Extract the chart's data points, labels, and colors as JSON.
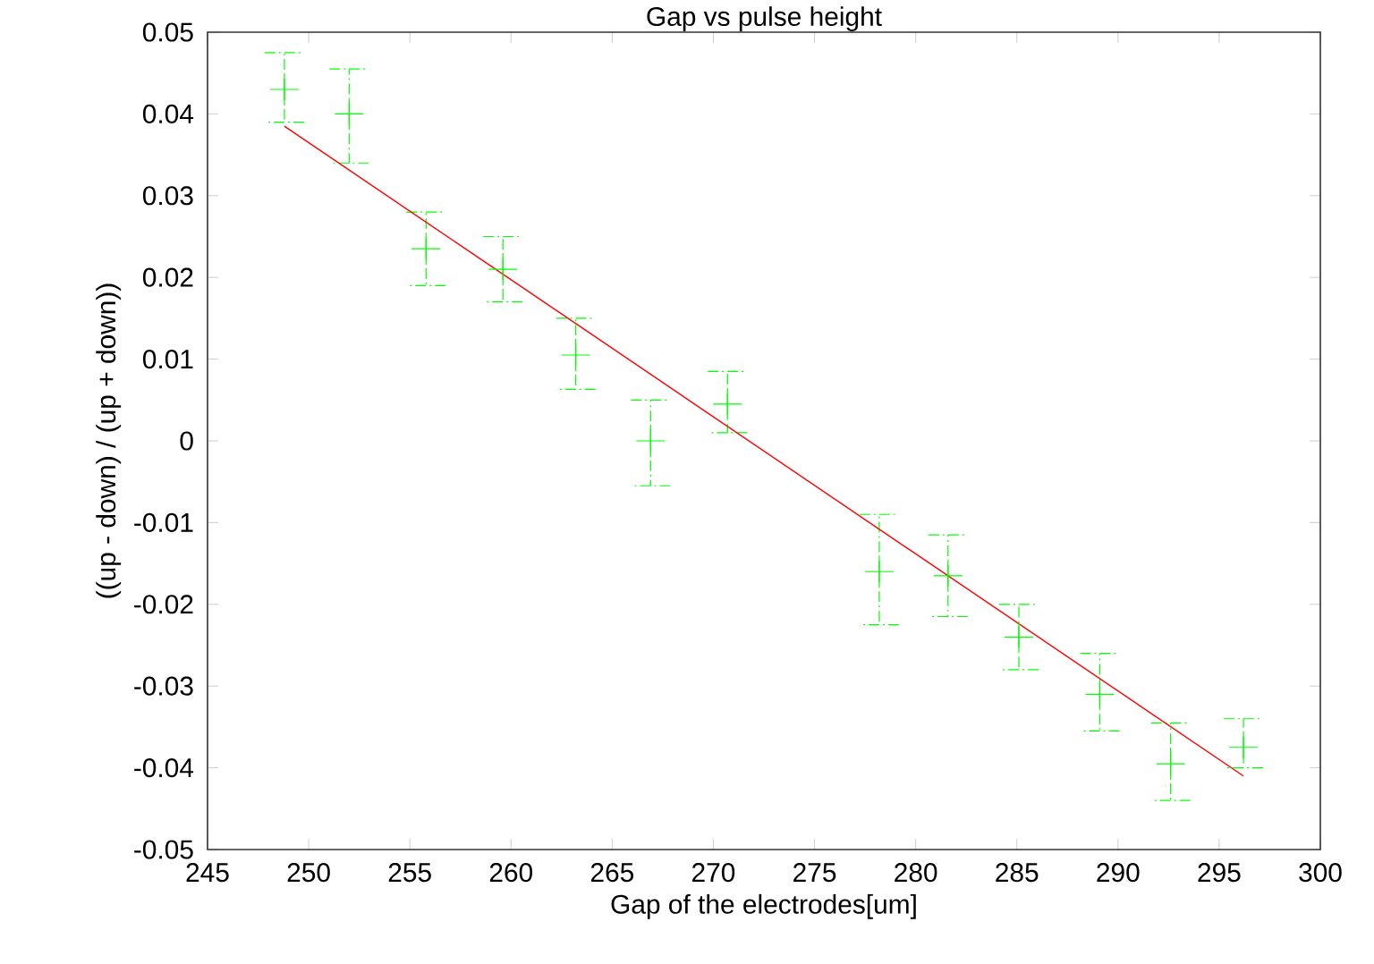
{
  "chart_data": {
    "type": "scatter",
    "title": "Gap vs pulse height",
    "xlabel": "Gap of the electrodes[um]",
    "ylabel": "((up - down) / (up + down))",
    "xlim": [
      245,
      300
    ],
    "xticks": [
      245,
      250,
      255,
      260,
      265,
      270,
      275,
      280,
      285,
      290,
      295,
      300
    ],
    "ylim": [
      -0.05,
      0.05
    ],
    "yticks": [
      -0.05,
      -0.04,
      -0.03,
      -0.02,
      -0.01,
      0,
      0.01,
      0.02,
      0.03,
      0.04,
      0.05
    ],
    "grid": false,
    "marker": "cross",
    "series": [
      {
        "color": "#00ff00",
        "x": [
          248.8,
          252,
          255.8,
          259.6,
          263.2,
          266.9,
          270.7,
          278.2,
          281.6,
          285.1,
          289.1,
          292.6,
          296.2
        ],
        "values": [
          0.043,
          0.04,
          0.0235,
          0.021,
          0.0105,
          0.0,
          0.0045,
          -0.016,
          -0.0165,
          -0.024,
          -0.031,
          -0.0395,
          -0.0375
        ],
        "errors": [
          [
            0.039,
            0.0475
          ],
          [
            0.034,
            0.0455
          ],
          [
            0.019,
            0.028
          ],
          [
            0.017,
            0.025
          ],
          [
            0.0063,
            0.015
          ],
          [
            -0.0055,
            0.005
          ],
          [
            0.001,
            0.0085
          ],
          [
            -0.0225,
            -0.009
          ],
          [
            -0.0215,
            -0.0115
          ],
          [
            -0.028,
            -0.02
          ],
          [
            -0.0355,
            -0.026
          ],
          [
            -0.044,
            -0.0345
          ],
          [
            -0.04,
            -0.034
          ]
        ]
      },
      {
        "type": "line",
        "marker": "none",
        "color": "#ff0000",
        "x": [
          248.8,
          296.2
        ],
        "values": [
          0.0385,
          -0.041
        ]
      }
    ]
  }
}
